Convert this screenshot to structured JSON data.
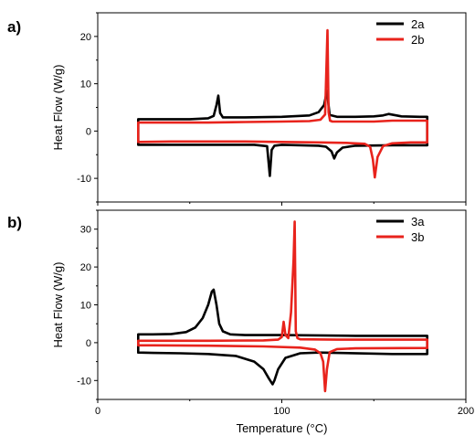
{
  "chart_data": [
    {
      "type": "line",
      "panel_label": "a)",
      "ylabel": "Heat Flow (W/g)",
      "xlabel": "",
      "xlim": [
        0,
        200
      ],
      "ylim": [
        -15,
        25
      ],
      "yticks": [
        -10,
        0,
        10,
        20
      ],
      "xticks": [],
      "legend_position": "top-right",
      "series": [
        {
          "name": "2a",
          "color": "#000000",
          "x": [
            22,
            30,
            40,
            50,
            60,
            63,
            64.5,
            65.5,
            66.5,
            68,
            80,
            100,
            115,
            120,
            123,
            124.5,
            126,
            130,
            140,
            150,
            155,
            158,
            161,
            165,
            175,
            179,
            179,
            175,
            160,
            140,
            133,
            130,
            128.5,
            127,
            124,
            120,
            110,
            100,
            96,
            94.5,
            93.5,
            92,
            85,
            70,
            50,
            30,
            22,
            22
          ],
          "y": [
            2.5,
            2.5,
            2.5,
            2.5,
            2.7,
            3.2,
            5.5,
            7.5,
            3.8,
            2.9,
            2.9,
            3,
            3.3,
            4,
            5.5,
            8.5,
            3.4,
            3,
            3,
            3.1,
            3.3,
            3.6,
            3.4,
            3.1,
            3,
            3,
            -3,
            -3,
            -3,
            -3.1,
            -3.5,
            -4.5,
            -5.8,
            -4.3,
            -3.3,
            -3.1,
            -3,
            -2.9,
            -3.1,
            -4,
            -9.5,
            -3.2,
            -2.9,
            -2.9,
            -2.9,
            -2.9,
            -2.9,
            2.5
          ]
        },
        {
          "name": "2b",
          "color": "#e8231c",
          "x": [
            22,
            40,
            60,
            80,
            100,
            115,
            121,
            123.5,
            124.8,
            125.4,
            126.2,
            127.5,
            135,
            150,
            160,
            170,
            179,
            179,
            170,
            160,
            155,
            152,
            150.5,
            149.5,
            148,
            145,
            135,
            120,
            100,
            80,
            60,
            40,
            22,
            22
          ],
          "y": [
            1.8,
            1.8,
            1.8,
            1.9,
            2,
            2.1,
            2.4,
            3.5,
            21.3,
            4,
            2.2,
            2,
            2,
            2,
            2.2,
            2.2,
            2.2,
            -2.4,
            -2.4,
            -2.6,
            -3.2,
            -5.5,
            -9.8,
            -6,
            -3.3,
            -2.7,
            -2.5,
            -2.4,
            -2.3,
            -2.2,
            -2.2,
            -2.2,
            -2.3,
            1.8
          ]
        }
      ]
    },
    {
      "type": "line",
      "panel_label": "b)",
      "ylabel": "Heat Flow (W/g)",
      "xlabel": "Temperature (°C)",
      "xlim": [
        0,
        200
      ],
      "ylim": [
        -15,
        35
      ],
      "yticks": [
        -10,
        0,
        10,
        20,
        30
      ],
      "xticks": [
        0,
        100,
        200
      ],
      "legend_position": "top-right",
      "series": [
        {
          "name": "3a",
          "color": "#000000",
          "x": [
            22,
            30,
            40,
            48,
            53,
            57,
            60,
            62,
            63,
            64.5,
            66,
            68,
            72,
            80,
            100,
            140,
            179,
            179,
            160,
            120,
            110,
            102,
            98,
            96,
            95,
            93,
            90,
            85,
            75,
            60,
            45,
            30,
            22,
            22
          ],
          "y": [
            2.2,
            2.2,
            2.3,
            2.8,
            4,
            6.5,
            10,
            13.5,
            14,
            10,
            5,
            3,
            2.2,
            2,
            2,
            1.8,
            1.8,
            -3,
            -3,
            -2.6,
            -2.8,
            -4,
            -7,
            -10,
            -11,
            -9.5,
            -7,
            -5,
            -3.5,
            -3,
            -2.8,
            -2.7,
            -2.6,
            2.2
          ]
        },
        {
          "name": "3b",
          "color": "#e8231c",
          "x": [
            22,
            60,
            90,
            98,
            100,
            101,
            102,
            103.5,
            105,
            105.8,
            106.4,
            107,
            107.6,
            108.5,
            110,
            130,
            179,
            179,
            140,
            130,
            126,
            124.5,
            123.5,
            122.5,
            121,
            118,
            110,
            90,
            60,
            30,
            22,
            22
          ],
          "y": [
            0.5,
            0.5,
            0.6,
            0.8,
            1.5,
            5.5,
            2,
            1.2,
            8,
            16,
            22,
            32,
            3,
            1.2,
            0.9,
            0.8,
            0.8,
            -1.4,
            -1.5,
            -1.7,
            -2.5,
            -7,
            -12.8,
            -5,
            -2.8,
            -1.8,
            -1.3,
            -1,
            -0.8,
            -0.7,
            -0.7,
            0.5
          ]
        }
      ]
    }
  ]
}
